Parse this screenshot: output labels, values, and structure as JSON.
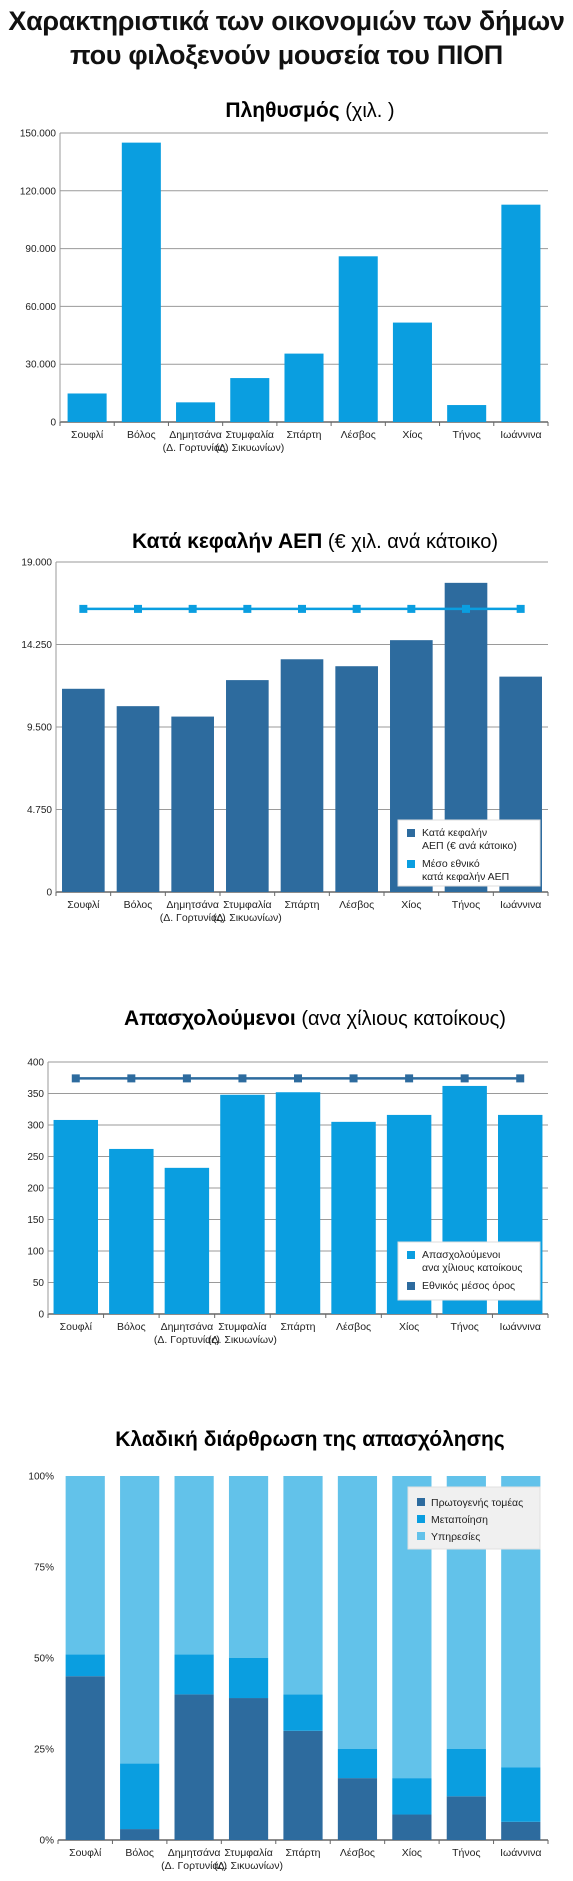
{
  "page": {
    "title_line1": "Χαρακτηριστικά των οικονομιών των δήμων",
    "title_line2": "που φιλοξενούν μουσεία του ΠΙΟΠ"
  },
  "categories": [
    {
      "name": "Σουφλί",
      "sub": ""
    },
    {
      "name": "Βόλος",
      "sub": ""
    },
    {
      "name": "Δημητσάνα",
      "sub": "(Δ. Γορτυνίας)"
    },
    {
      "name": "Στυμφαλία",
      "sub": "(Δ. Σικυωνίων)"
    },
    {
      "name": "Σπάρτη",
      "sub": ""
    },
    {
      "name": "Λέσβος",
      "sub": ""
    },
    {
      "name": "Χίος",
      "sub": ""
    },
    {
      "name": "Τήνος",
      "sub": ""
    },
    {
      "name": "Ιωάννινα",
      "sub": ""
    }
  ],
  "colors": {
    "light_blue": "#0a9ee0",
    "dark_blue": "#2d6b9e",
    "pale_blue": "#62c2ea",
    "grid": "#9a9a9a"
  },
  "chart_data": [
    {
      "type": "bar",
      "title_bold": "Πληθυσμός",
      "title_normal": "(χιλ. )",
      "yticks": [
        "0",
        "30.000",
        "60.000",
        "90.000",
        "120.000",
        "150.000"
      ],
      "ylim": [
        0,
        150000
      ],
      "grid": true,
      "series": [
        {
          "name": "",
          "values": [
            14800,
            145000,
            10200,
            22800,
            35500,
            86000,
            51600,
            8800,
            112800
          ]
        }
      ]
    },
    {
      "type": "bar",
      "title_bold": "Κατά κεφαλήν ΑΕΠ",
      "title_normal": "(€ χιλ. ανά κάτοικο)",
      "yticks": [
        "0",
        "4.750",
        "9.500",
        "14.250",
        "19.000"
      ],
      "ylim": [
        0,
        19000
      ],
      "grid": true,
      "legend_position": "bottom-right",
      "series": [
        {
          "name_line1": "Κατά κεφαλήν",
          "name_line2": "ΑΕΠ (€ ανά κάτοικο)",
          "values": [
            11700,
            10700,
            10100,
            12200,
            13400,
            13000,
            14500,
            17800,
            12400
          ]
        },
        {
          "name_line1": "Μέσο εθνικό",
          "name_line2": "κατά κεφαλήν ΑΕΠ",
          "values": [
            16300,
            16300,
            16300,
            16300,
            16300,
            16300,
            16300,
            16300,
            16300
          ]
        }
      ]
    },
    {
      "type": "bar",
      "title_bold": "Απασχολούμενοι",
      "title_normal": "(ανα χίλιους κατοίκους)",
      "yticks": [
        "0",
        "50",
        "100",
        "150",
        "200",
        "250",
        "300",
        "350",
        "400"
      ],
      "ylim": [
        0,
        400
      ],
      "grid": true,
      "legend_position": "bottom-right",
      "series": [
        {
          "name_line1": "Απασχολούμενοι",
          "name_line2": "ανα χίλιους κατοίκους",
          "values": [
            308,
            262,
            232,
            348,
            352,
            305,
            316,
            362,
            316
          ]
        },
        {
          "name_line1": "Εθνικός μέσος όρος",
          "name_line2": "",
          "values": [
            374,
            374,
            374,
            374,
            374,
            374,
            374,
            374,
            374
          ]
        }
      ]
    },
    {
      "type": "bar",
      "stacked": true,
      "title_bold": "Κλαδική διάρθρωση της απασχόλησης",
      "title_normal": "",
      "yticks": [
        "0%",
        "25%",
        "50%",
        "75%",
        "100%"
      ],
      "ylim": [
        0,
        100
      ],
      "grid": false,
      "legend_position": "top-right",
      "series": [
        {
          "name": "Πρωτογενής τομέας",
          "values": [
            45,
            3,
            40,
            39,
            30,
            17,
            7,
            12,
            5
          ]
        },
        {
          "name": "Μεταποίηση",
          "values": [
            6,
            18,
            11,
            11,
            10,
            8,
            10,
            13,
            15
          ]
        },
        {
          "name": "Υπηρεσίες",
          "values": [
            49,
            79,
            49,
            50,
            60,
            75,
            83,
            75,
            80
          ]
        }
      ]
    }
  ]
}
